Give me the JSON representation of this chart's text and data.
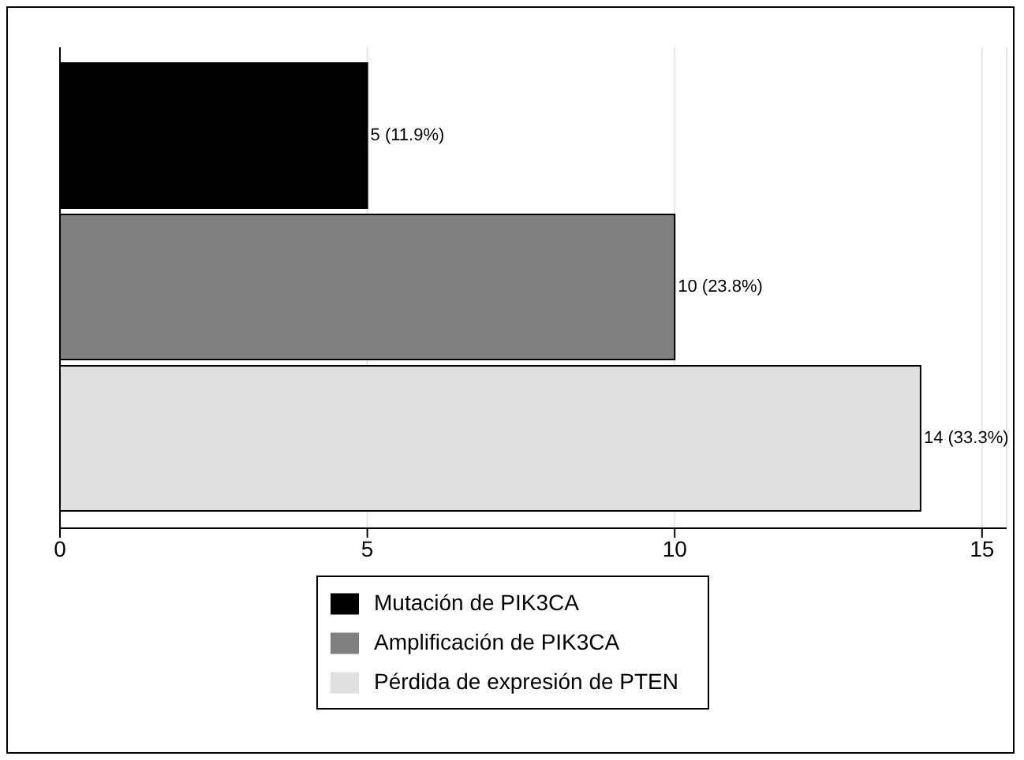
{
  "chart_data": {
    "type": "bar",
    "orientation": "horizontal",
    "categories": [
      null
    ],
    "series": [
      {
        "name": "Mutación de PIK3CA",
        "color": "#000000",
        "values": [
          5
        ],
        "value_labels": [
          "5 (11.9%)"
        ]
      },
      {
        "name": "Amplificación de PIK3CA",
        "color": "#808080",
        "values": [
          10
        ],
        "value_labels": [
          "10 (23.8%)"
        ]
      },
      {
        "name": "Pérdida de expresión de PTEN",
        "color": "#e0e0e0",
        "values": [
          14
        ],
        "value_labels": [
          "14 (33.3%)"
        ]
      }
    ],
    "xlim": [
      0,
      15.4
    ],
    "xticks": [
      0,
      5,
      10,
      15
    ],
    "grid": "x",
    "legend": "bottom"
  }
}
